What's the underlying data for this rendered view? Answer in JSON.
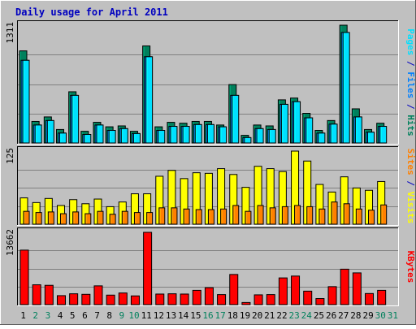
{
  "chart_data": {
    "type": "bar",
    "title": "Daily usage for April 2011",
    "categories": [
      "1",
      "2",
      "3",
      "4",
      "5",
      "6",
      "7",
      "8",
      "9",
      "10",
      "11",
      "12",
      "13",
      "14",
      "15",
      "16",
      "17",
      "18",
      "19",
      "20",
      "21",
      "22",
      "23",
      "24",
      "25",
      "26",
      "27",
      "28",
      "29",
      "30",
      "31"
    ],
    "weekend_days": [
      "2",
      "3",
      "9",
      "10",
      "16",
      "17",
      "23",
      "24",
      "30",
      "31"
    ],
    "grid": true,
    "panels": [
      {
        "id": "hits-panel",
        "ymax": 1311,
        "ymax_label": "1311",
        "side_label_parts": [
          {
            "text": "Pages",
            "color": "#00e0ff"
          },
          {
            "text": " / ",
            "color": "#0000c0"
          },
          {
            "text": "Files",
            "color": "#0080ff"
          },
          {
            "text": " / ",
            "color": "#0000c0"
          },
          {
            "text": "Hits",
            "color": "#00805c"
          }
        ],
        "series": [
          {
            "name": "Hits",
            "color": "#00805c",
            "values": [
              1025,
              240,
              290,
              150,
              570,
              130,
              230,
              180,
              190,
              130,
              1080,
              180,
              230,
              220,
              240,
              240,
              200,
              650,
              85,
              200,
              190,
              480,
              500,
              330,
              140,
              250,
              1311,
              380,
              150,
              220,
              null
            ]
          },
          {
            "name": "Files",
            "color": "#0080ff",
            "values": [
              920,
              200,
              250,
              110,
              530,
              95,
              200,
              140,
              160,
              105,
              960,
              140,
              185,
              185,
              205,
              205,
              180,
              530,
              60,
              160,
              150,
              430,
              460,
              280,
              110,
              210,
              1230,
              290,
              120,
              185,
              null
            ]
          },
          {
            "name": "Pages",
            "color": "#00e0ff",
            "values": [
              920,
              200,
              250,
              110,
              530,
              95,
              200,
              140,
              160,
              105,
              960,
              140,
              185,
              185,
              205,
              205,
              180,
              530,
              60,
              160,
              150,
              430,
              460,
              280,
              110,
              210,
              1230,
              290,
              120,
              185,
              null
            ]
          }
        ]
      },
      {
        "id": "visits-panel",
        "ymax": 125,
        "ymax_label": "125",
        "side_label_parts": [
          {
            "text": "Sites",
            "color": "#ff8000"
          },
          {
            "text": " / ",
            "color": "#0000c0"
          },
          {
            "text": "Visits",
            "color": "#ffff00"
          }
        ],
        "series": [
          {
            "name": "Visits",
            "color": "#ffff00",
            "values": [
              45,
              37,
              44,
              32,
              42,
              35,
              43,
              30,
              38,
              52,
              52,
              82,
              92,
              78,
              88,
              87,
              95,
              85,
              63,
              99,
              95,
              90,
              125,
              108,
              68,
              55,
              81,
              62,
              58,
              73,
              null
            ]
          },
          {
            "name": "Sites",
            "color": "#ff8000",
            "values": [
              22,
              20,
              21,
              18,
              21,
              18,
              22,
              17,
              22,
              20,
              20,
              28,
              28,
              26,
              25,
              25,
              26,
              32,
              22,
              32,
              28,
              30,
              32,
              30,
              26,
              38,
              35,
              26,
              24,
              33,
              null
            ]
          }
        ]
      },
      {
        "id": "kbytes-panel",
        "ymax": 13662,
        "ymax_label": "13662",
        "side_label_parts": [
          {
            "text": "KBytes",
            "color": "#ff0000"
          }
        ],
        "series": [
          {
            "name": "KBytes",
            "color": "#ff0000",
            "values": [
              10300,
              3750,
              3650,
              1700,
              2050,
              1950,
              3550,
              1800,
              2200,
              1650,
              13662,
              2000,
              2050,
              2000,
              2700,
              3200,
              1900,
              5700,
              400,
              1850,
              1900,
              5050,
              5400,
              2550,
              1150,
              3400,
              6700,
              6000,
              2100,
              2700,
              null
            ]
          }
        ]
      }
    ]
  }
}
